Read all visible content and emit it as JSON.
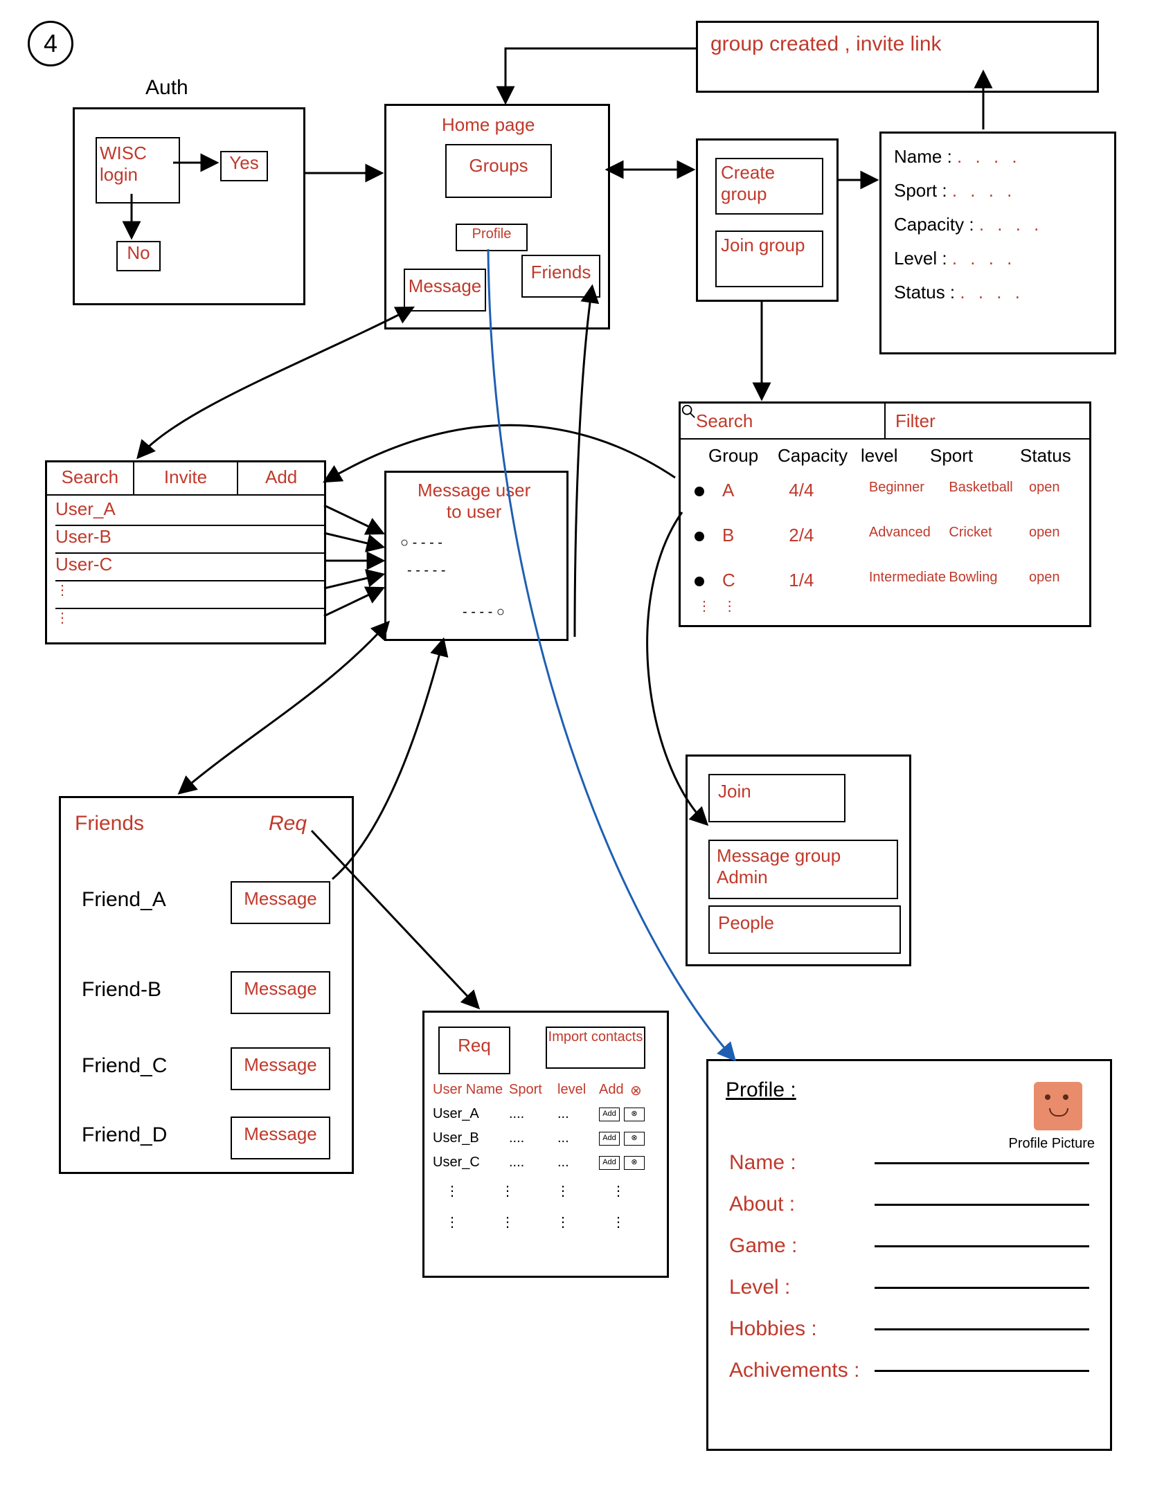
{
  "page_number": "4",
  "colors": {
    "ink": "#000000",
    "red": "#c0392b",
    "blue": "#1e5fb3",
    "pp": "#e98c6b"
  },
  "auth": {
    "title": "Auth",
    "login": "WISC\nlogin",
    "yes": "Yes",
    "no": "No"
  },
  "home": {
    "title": "Home page",
    "groups": "Groups",
    "profile": "Profile",
    "message": "Message",
    "friends": "Friends"
  },
  "group_created": "group created , invite link",
  "group_panel": {
    "create": "Create\n   group",
    "join": "Join\n  group"
  },
  "group_form": {
    "name": "Name :",
    "sport": "Sport :",
    "capacity": "Capacity :",
    "level": "Level :",
    "status": "Status :",
    "ellipsis": ". . . ."
  },
  "group_list": {
    "search": "Search",
    "filter": "Filter",
    "cols": [
      "Group",
      "Capacity",
      "level",
      "Sport",
      "Status"
    ],
    "rows": [
      {
        "g": "A",
        "cap": "4/4",
        "lvl": "Beginner",
        "sport": "Basketball",
        "st": "open"
      },
      {
        "g": "B",
        "cap": "2/4",
        "lvl": "Advanced",
        "sport": "Cricket",
        "st": "open"
      },
      {
        "g": "C",
        "cap": "1/4",
        "lvl": "Intermediate",
        "sport": "Bowling",
        "st": "open"
      }
    ]
  },
  "group_detail": {
    "join": "Join",
    "msg_admin": "Message group\nAdmin",
    "people": "People"
  },
  "msg_panel": {
    "tabs": [
      "Search",
      "Invite",
      "Add"
    ],
    "users": [
      "User_A",
      "User-B",
      "User-C"
    ]
  },
  "msg_chat": {
    "title": "Message user\nto user"
  },
  "friends": {
    "title": "Friends",
    "req": "Req",
    "rows": [
      "Friend_A",
      "Friend-B",
      "Friend_C",
      "Friend_D"
    ],
    "btn": "Message"
  },
  "req_panel": {
    "req": "Req",
    "import": "Import\ncontacts",
    "cols": [
      "User Name",
      "Sport",
      "level",
      "Add",
      "⊗"
    ],
    "rows": [
      "User_A",
      "User_B",
      "User_C"
    ],
    "add": "Add"
  },
  "profile": {
    "title": "Profile :",
    "pp_caption": "Profile Picture",
    "fields": [
      "Name",
      "About",
      "Game",
      "Level",
      "Hobbies",
      "Achivements"
    ]
  }
}
